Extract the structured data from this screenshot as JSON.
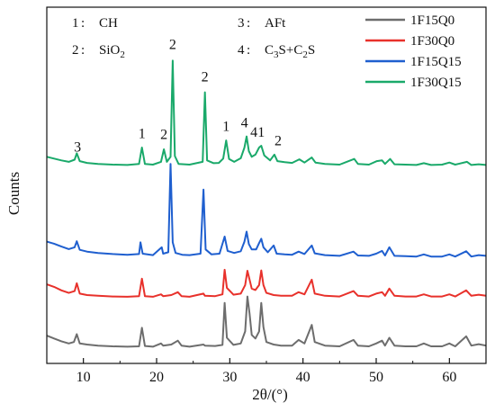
{
  "chart_data": {
    "type": "line",
    "xlabel": "2θ/(°)",
    "ylabel": "Counts",
    "xlim": [
      5,
      65
    ],
    "ylim": [
      0,
      100
    ],
    "x_ticks": [
      10,
      20,
      30,
      40,
      50,
      60
    ],
    "x_tick_labels": [
      "10",
      "20",
      "30",
      "40",
      "50",
      "60"
    ],
    "y_ticks_shown": false,
    "grid": false,
    "legend_position": "top-right",
    "phase_key": [
      {
        "number": "1",
        "phase": "CH"
      },
      {
        "number": "2",
        "phase": "SiO2"
      },
      {
        "number": "3",
        "phase": "AFt"
      },
      {
        "number": "4",
        "phase": "C3S+C2S"
      }
    ],
    "peak_labels": [
      {
        "text": "3",
        "x": 9.2,
        "y": 59.5
      },
      {
        "text": "1",
        "x": 18.0,
        "y": 63.2
      },
      {
        "text": "2",
        "x": 21.0,
        "y": 63.0
      },
      {
        "text": "2",
        "x": 22.2,
        "y": 88.2
      },
      {
        "text": "2",
        "x": 26.6,
        "y": 79.2
      },
      {
        "text": "1",
        "x": 29.5,
        "y": 65.3
      },
      {
        "text": "4",
        "x": 32.0,
        "y": 66.3
      },
      {
        "text": "4",
        "x": 33.3,
        "y": 63.6
      },
      {
        "text": "1",
        "x": 34.3,
        "y": 63.6
      },
      {
        "text": "2",
        "x": 36.6,
        "y": 61.2
      }
    ],
    "series": [
      {
        "name": "1F15Q0",
        "color": "#6d6d6d",
        "points": [
          [
            5,
            7.8
          ],
          [
            6,
            7.0
          ],
          [
            7,
            6.2
          ],
          [
            8,
            5.6
          ],
          [
            8.7,
            6.0
          ],
          [
            9.1,
            8.2
          ],
          [
            9.5,
            5.6
          ],
          [
            10.5,
            5.3
          ],
          [
            12,
            5.0
          ],
          [
            14,
            4.8
          ],
          [
            16,
            4.7
          ],
          [
            17.6,
            4.8
          ],
          [
            18.0,
            10.0
          ],
          [
            18.4,
            4.9
          ],
          [
            19.5,
            4.7
          ],
          [
            20.6,
            5.6
          ],
          [
            20.9,
            5.0
          ],
          [
            22.0,
            5.3
          ],
          [
            22.9,
            6.4
          ],
          [
            23.4,
            5.0
          ],
          [
            24.5,
            4.7
          ],
          [
            26.4,
            5.3
          ],
          [
            26.6,
            5.0
          ],
          [
            28.0,
            4.9
          ],
          [
            29.0,
            5.2
          ],
          [
            29.3,
            17.0
          ],
          [
            29.6,
            7.2
          ],
          [
            30.5,
            5.2
          ],
          [
            31.5,
            5.6
          ],
          [
            32.1,
            9.0
          ],
          [
            32.4,
            18.8
          ],
          [
            32.7,
            14.0
          ],
          [
            33.0,
            8.0
          ],
          [
            33.5,
            7.0
          ],
          [
            34.0,
            9.0
          ],
          [
            34.3,
            17.0
          ],
          [
            34.6,
            10.2
          ],
          [
            35.0,
            6.0
          ],
          [
            36.0,
            5.3
          ],
          [
            37.0,
            5.0
          ],
          [
            38.5,
            5.0
          ],
          [
            39.4,
            6.6
          ],
          [
            40.2,
            5.6
          ],
          [
            41.2,
            10.8
          ],
          [
            41.6,
            6.0
          ],
          [
            43,
            5.0
          ],
          [
            45,
            4.8
          ],
          [
            46.9,
            6.6
          ],
          [
            47.5,
            5.0
          ],
          [
            49,
            4.8
          ],
          [
            50.0,
            5.6
          ],
          [
            50.8,
            6.4
          ],
          [
            51.2,
            5.0
          ],
          [
            51.8,
            7.2
          ],
          [
            52.5,
            5.0
          ],
          [
            54,
            4.8
          ],
          [
            55.5,
            4.8
          ],
          [
            56.5,
            5.6
          ],
          [
            57.5,
            4.8
          ],
          [
            59.0,
            4.8
          ],
          [
            60.0,
            5.6
          ],
          [
            60.8,
            4.8
          ],
          [
            62.3,
            7.6
          ],
          [
            63.0,
            5.0
          ],
          [
            64.0,
            5.4
          ],
          [
            65,
            5.0
          ]
        ]
      },
      {
        "name": "1F30Q0",
        "color": "#e8312b",
        "points": [
          [
            5,
            22.2
          ],
          [
            6,
            21.5
          ],
          [
            7,
            20.5
          ],
          [
            8,
            19.8
          ],
          [
            8.8,
            20.3
          ],
          [
            9.1,
            22.5
          ],
          [
            9.5,
            19.6
          ],
          [
            10.5,
            19.2
          ],
          [
            12,
            19.0
          ],
          [
            14,
            18.8
          ],
          [
            16,
            18.7
          ],
          [
            17.6,
            18.9
          ],
          [
            18.0,
            23.8
          ],
          [
            18.4,
            18.9
          ],
          [
            19.5,
            18.7
          ],
          [
            20.6,
            19.4
          ],
          [
            20.9,
            18.9
          ],
          [
            22.0,
            19.2
          ],
          [
            22.9,
            20.0
          ],
          [
            23.4,
            18.9
          ],
          [
            24.5,
            18.7
          ],
          [
            26.4,
            19.6
          ],
          [
            26.6,
            19.0
          ],
          [
            28.0,
            18.9
          ],
          [
            29.0,
            19.4
          ],
          [
            29.3,
            26.3
          ],
          [
            29.6,
            21.2
          ],
          [
            30.5,
            19.3
          ],
          [
            31.5,
            19.6
          ],
          [
            32.1,
            22.0
          ],
          [
            32.4,
            26.0
          ],
          [
            32.7,
            23.5
          ],
          [
            33.0,
            21.0
          ],
          [
            33.5,
            20.6
          ],
          [
            34.0,
            22.0
          ],
          [
            34.3,
            26.1
          ],
          [
            34.6,
            22.0
          ],
          [
            35.0,
            19.8
          ],
          [
            36.0,
            19.2
          ],
          [
            37.0,
            19.0
          ],
          [
            38.5,
            19.0
          ],
          [
            39.4,
            20.0
          ],
          [
            40.2,
            19.4
          ],
          [
            41.2,
            23.5
          ],
          [
            41.6,
            19.6
          ],
          [
            43,
            19.0
          ],
          [
            45,
            18.8
          ],
          [
            46.9,
            20.3
          ],
          [
            47.5,
            19.0
          ],
          [
            49,
            18.8
          ],
          [
            50.0,
            19.6
          ],
          [
            50.8,
            20.0
          ],
          [
            51.2,
            19.0
          ],
          [
            51.8,
            21.0
          ],
          [
            52.5,
            19.0
          ],
          [
            54,
            18.8
          ],
          [
            55.5,
            18.8
          ],
          [
            56.5,
            19.4
          ],
          [
            57.5,
            18.8
          ],
          [
            59.0,
            18.8
          ],
          [
            60.0,
            19.4
          ],
          [
            60.8,
            18.8
          ],
          [
            62.3,
            20.5
          ],
          [
            63.0,
            19.0
          ],
          [
            64.0,
            19.3
          ],
          [
            65,
            19.0
          ]
        ]
      },
      {
        "name": "1F15Q15",
        "color": "#1f5fcf",
        "points": [
          [
            5,
            34.2
          ],
          [
            6,
            33.6
          ],
          [
            7,
            32.8
          ],
          [
            8,
            32.1
          ],
          [
            8.8,
            32.6
          ],
          [
            9.1,
            34.3
          ],
          [
            9.5,
            31.9
          ],
          [
            10.5,
            31.4
          ],
          [
            12,
            31.0
          ],
          [
            14,
            30.7
          ],
          [
            16,
            30.5
          ],
          [
            17.6,
            30.7
          ],
          [
            17.8,
            34.0
          ],
          [
            18.1,
            30.8
          ],
          [
            19.5,
            30.4
          ],
          [
            20.7,
            32.6
          ],
          [
            20.9,
            30.8
          ],
          [
            21.6,
            31.2
          ],
          [
            21.9,
            56.0
          ],
          [
            22.2,
            34.0
          ],
          [
            22.6,
            31.0
          ],
          [
            23.5,
            30.5
          ],
          [
            24.5,
            30.4
          ],
          [
            26.0,
            30.8
          ],
          [
            26.4,
            48.8
          ],
          [
            26.7,
            32.0
          ],
          [
            27.5,
            30.6
          ],
          [
            28.6,
            30.8
          ],
          [
            29.3,
            35.6
          ],
          [
            29.7,
            31.6
          ],
          [
            30.6,
            31.0
          ],
          [
            31.5,
            31.5
          ],
          [
            32.0,
            34.2
          ],
          [
            32.3,
            37.0
          ],
          [
            32.6,
            33.5
          ],
          [
            33.0,
            32.0
          ],
          [
            33.6,
            32.0
          ],
          [
            34.0,
            33.8
          ],
          [
            34.3,
            35.0
          ],
          [
            34.6,
            32.6
          ],
          [
            35.2,
            31.2
          ],
          [
            36.0,
            33.1
          ],
          [
            36.4,
            30.8
          ],
          [
            37.5,
            30.6
          ],
          [
            38.5,
            30.5
          ],
          [
            39.4,
            31.4
          ],
          [
            40.2,
            30.7
          ],
          [
            41.2,
            33.1
          ],
          [
            41.6,
            30.9
          ],
          [
            43,
            30.4
          ],
          [
            45,
            30.2
          ],
          [
            46.9,
            31.4
          ],
          [
            47.5,
            30.3
          ],
          [
            49,
            30.2
          ],
          [
            50.0,
            30.8
          ],
          [
            50.8,
            31.6
          ],
          [
            51.2,
            30.3
          ],
          [
            51.8,
            32.6
          ],
          [
            52.5,
            30.2
          ],
          [
            54,
            30.1
          ],
          [
            55.5,
            30.0
          ],
          [
            56.5,
            30.6
          ],
          [
            57.5,
            30.0
          ],
          [
            59.0,
            30.0
          ],
          [
            60.0,
            30.6
          ],
          [
            60.8,
            30.0
          ],
          [
            62.3,
            31.5
          ],
          [
            63.0,
            30.0
          ],
          [
            64.0,
            30.4
          ],
          [
            65,
            30.2
          ]
        ]
      },
      {
        "name": "1F30Q15",
        "color": "#1aa96a",
        "points": [
          [
            5,
            58.0
          ],
          [
            6,
            57.5
          ],
          [
            7,
            57.0
          ],
          [
            8,
            56.6
          ],
          [
            8.8,
            57.2
          ],
          [
            9.1,
            59.0
          ],
          [
            9.5,
            56.8
          ],
          [
            10.5,
            56.3
          ],
          [
            12,
            56.0
          ],
          [
            14,
            55.8
          ],
          [
            16,
            55.7
          ],
          [
            17.6,
            56.0
          ],
          [
            18.0,
            60.6
          ],
          [
            18.4,
            56.0
          ],
          [
            19.5,
            55.8
          ],
          [
            20.6,
            56.6
          ],
          [
            21.0,
            60.1
          ],
          [
            21.4,
            56.6
          ],
          [
            21.9,
            58.0
          ],
          [
            22.2,
            85.0
          ],
          [
            22.5,
            58.2
          ],
          [
            23.0,
            56.0
          ],
          [
            24.5,
            55.8
          ],
          [
            26.3,
            56.6
          ],
          [
            26.6,
            76.1
          ],
          [
            26.9,
            57.0
          ],
          [
            27.8,
            56.2
          ],
          [
            28.5,
            56.3
          ],
          [
            29.1,
            57.5
          ],
          [
            29.5,
            62.6
          ],
          [
            29.9,
            57.4
          ],
          [
            30.6,
            56.6
          ],
          [
            31.5,
            57.6
          ],
          [
            32.0,
            60.6
          ],
          [
            32.3,
            63.7
          ],
          [
            32.6,
            59.6
          ],
          [
            33.0,
            58.0
          ],
          [
            33.5,
            58.6
          ],
          [
            34.0,
            60.6
          ],
          [
            34.3,
            61.1
          ],
          [
            34.7,
            58.4
          ],
          [
            35.5,
            57.0
          ],
          [
            36.1,
            58.6
          ],
          [
            36.5,
            56.8
          ],
          [
            37.5,
            56.5
          ],
          [
            38.5,
            56.3
          ],
          [
            39.5,
            57.3
          ],
          [
            40.2,
            56.4
          ],
          [
            41.2,
            57.8
          ],
          [
            41.7,
            56.4
          ],
          [
            43,
            56.0
          ],
          [
            45,
            55.8
          ],
          [
            47.0,
            57.4
          ],
          [
            47.5,
            56.0
          ],
          [
            49,
            55.8
          ],
          [
            50.1,
            56.8
          ],
          [
            50.8,
            57.0
          ],
          [
            51.2,
            56.0
          ],
          [
            51.9,
            57.4
          ],
          [
            52.5,
            55.9
          ],
          [
            54,
            55.8
          ],
          [
            55.5,
            55.7
          ],
          [
            56.5,
            56.2
          ],
          [
            57.5,
            55.7
          ],
          [
            59.0,
            55.8
          ],
          [
            60.0,
            56.4
          ],
          [
            60.8,
            55.8
          ],
          [
            62.4,
            56.6
          ],
          [
            63.0,
            55.7
          ],
          [
            64.0,
            55.9
          ],
          [
            65,
            55.7
          ]
        ]
      }
    ]
  }
}
